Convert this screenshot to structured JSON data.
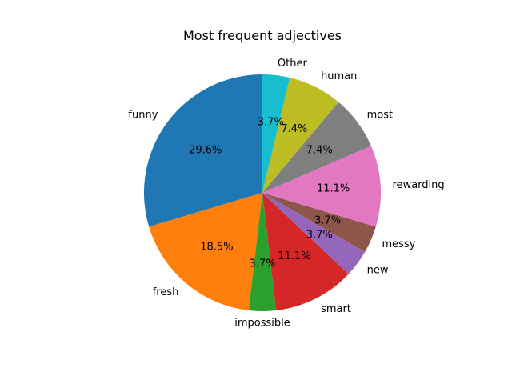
{
  "chart_data": {
    "type": "pie",
    "title": "Most frequent adjectives",
    "start_angle_deg": 90,
    "direction": "counterclockwise",
    "slices": [
      {
        "label": "funny",
        "value": 29.6,
        "pct_label": "29.6%",
        "color": "#1f77b4"
      },
      {
        "label": "fresh",
        "value": 18.5,
        "pct_label": "18.5%",
        "color": "#ff7f0e"
      },
      {
        "label": "impossible",
        "value": 3.7,
        "pct_label": "3.7%",
        "color": "#2ca02c"
      },
      {
        "label": "smart",
        "value": 11.1,
        "pct_label": "11.1%",
        "color": "#d62728"
      },
      {
        "label": "new",
        "value": 3.7,
        "pct_label": "3.7%",
        "color": "#9467bd"
      },
      {
        "label": "messy",
        "value": 3.7,
        "pct_label": "3.7%",
        "color": "#8c564b"
      },
      {
        "label": "rewarding",
        "value": 11.1,
        "pct_label": "11.1%",
        "color": "#e377c2"
      },
      {
        "label": "most",
        "value": 7.4,
        "pct_label": "7.4%",
        "color": "#7f7f7f"
      },
      {
        "label": "human",
        "value": 7.4,
        "pct_label": "7.4%",
        "color": "#bcbd22"
      },
      {
        "label": "Other",
        "value": 3.7,
        "pct_label": "3.7%",
        "color": "#17becf"
      }
    ]
  }
}
